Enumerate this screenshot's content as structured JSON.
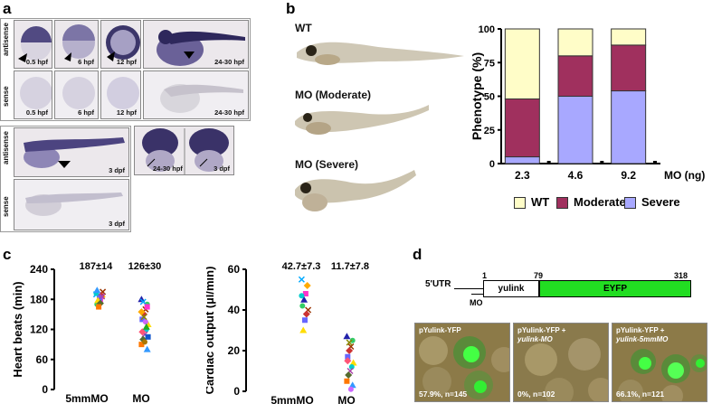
{
  "panels": {
    "a": "a",
    "b": "b",
    "c": "c",
    "d": "d"
  },
  "panel_a": {
    "row_antisense": "antisense",
    "row_sense": "sense",
    "row_antisense2": "antisense",
    "row_sense2": "sense",
    "tiles": [
      {
        "caption": "0.5 hpf"
      },
      {
        "caption": "6 hpf"
      },
      {
        "caption": "12 hpf"
      },
      {
        "caption": "24-30 hpf"
      },
      {
        "caption": "0.5 hpf"
      },
      {
        "caption": "6 hpf"
      },
      {
        "caption": "12 hpf"
      },
      {
        "caption": "24-30 hpf"
      },
      {
        "caption": "3 dpf"
      },
      {
        "caption_left": "24-30 hpf",
        "caption": "3 dpf"
      },
      {
        "caption": "3 dpf"
      }
    ]
  },
  "panel_b": {
    "fish_labels": [
      "WT",
      "MO (Moderate)",
      "MO (Severe)"
    ],
    "legend": [
      {
        "label": "WT",
        "color": "#fffdc8"
      },
      {
        "label": "Moderate",
        "color": "#a0305e"
      },
      {
        "label": "Severe",
        "color": "#a8a8ff"
      }
    ]
  },
  "chart_data": [
    {
      "type": "bar",
      "stacked": true,
      "categories": [
        "2.3",
        "4.6",
        "9.2"
      ],
      "xlabel": "MO (ng)",
      "ylabel": "Phenotype (%)",
      "ylim": [
        0,
        100
      ],
      "yticks": [
        "0",
        "25",
        "50",
        "75",
        "100"
      ],
      "series": [
        {
          "name": "Severe",
          "values": [
            5,
            50,
            54
          ],
          "color": "#a8a8ff"
        },
        {
          "name": "Moderate",
          "values": [
            43,
            30,
            34
          ],
          "color": "#a0305e"
        },
        {
          "name": "WT",
          "values": [
            52,
            20,
            12
          ],
          "color": "#fffdc8"
        }
      ]
    },
    {
      "type": "scatter",
      "categories": [
        "5mmMO",
        "MO"
      ],
      "ylabel": "Heart beats (min)",
      "ylim": [
        0,
        240
      ],
      "yticks": [
        "0",
        "60",
        "120",
        "180",
        "240"
      ],
      "annotations": [
        "187±14",
        "126±30"
      ],
      "points": [
        [
          190,
          185,
          180,
          175,
          170,
          195,
          188,
          183,
          178,
          192,
          186,
          172,
          165,
          198
        ],
        [
          180,
          170,
          160,
          150,
          140,
          130,
          120,
          110,
          100,
          90,
          80,
          135,
          145,
          115,
          105,
          125,
          95,
          175,
          155,
          165
        ]
      ]
    },
    {
      "type": "scatter",
      "categories": [
        "5mmMO",
        "MO"
      ],
      "ylabel": "Cardiac output (µl/min)",
      "ylim": [
        0,
        60
      ],
      "yticks": [
        "0",
        "20",
        "40",
        "60"
      ],
      "annotations": [
        "42.7±7.3",
        "11.7±7.8"
      ],
      "points": [
        [
          55,
          52,
          48,
          45,
          42,
          40,
          38,
          35,
          30,
          47
        ],
        [
          27,
          25,
          22,
          20,
          17,
          14,
          12,
          10,
          8,
          5,
          3,
          1,
          24,
          15
        ]
      ]
    }
  ],
  "panel_d": {
    "utr": "5'UTR",
    "mo": "MO",
    "pos": [
      "1",
      "79",
      "318"
    ],
    "block1": "yulink",
    "block2": "EYFP",
    "images": [
      {
        "title": "pYulink-YFP",
        "title2": "",
        "stat": "57.9%, n=145"
      },
      {
        "title": "pYulink-YFP +",
        "title2": "yulink-MO",
        "stat": "0%, n=102"
      },
      {
        "title": "pYulink-YFP +",
        "title2": "yulink-5mmMO",
        "stat": "66.1%, n=121"
      }
    ]
  }
}
